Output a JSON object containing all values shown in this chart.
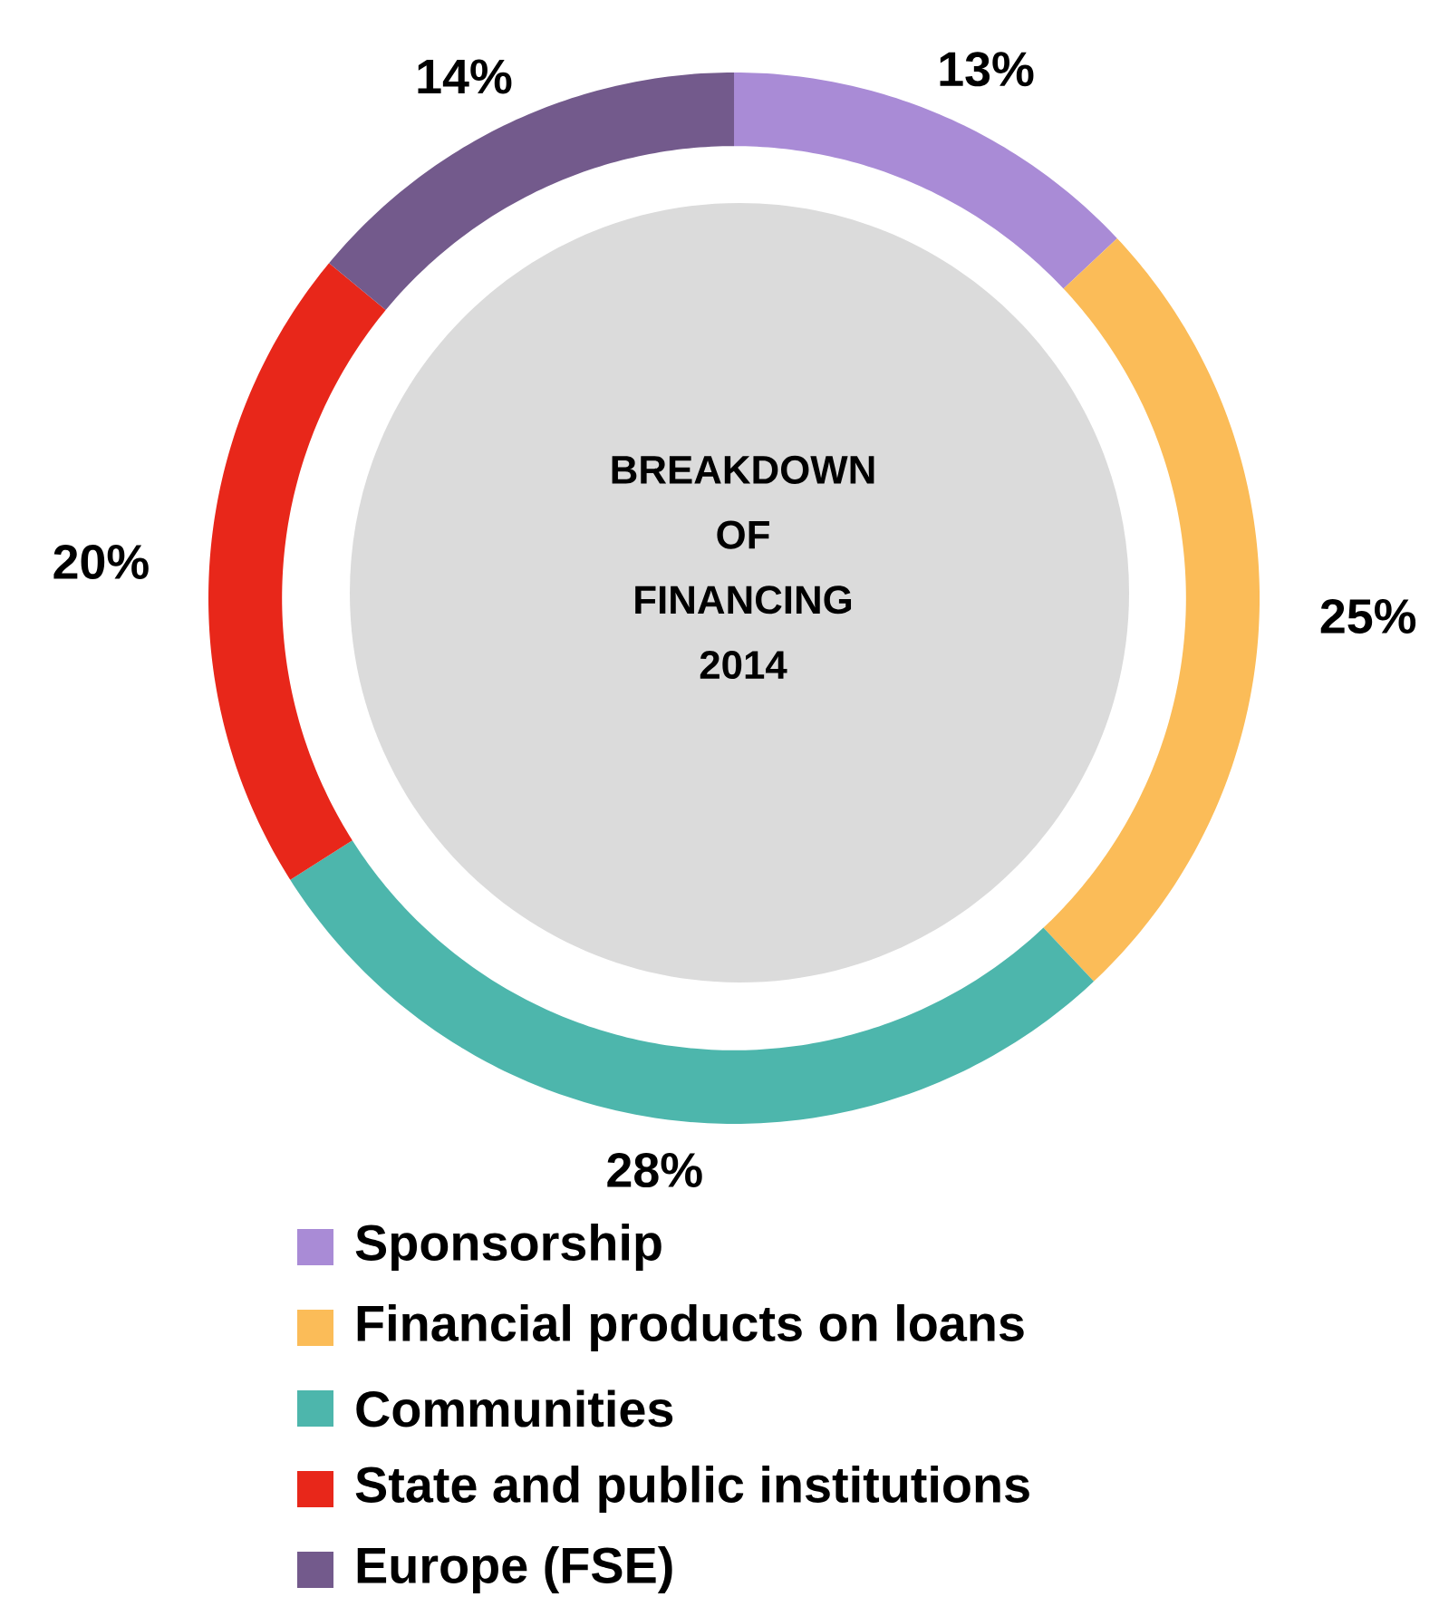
{
  "chart_data": {
    "type": "donut",
    "title": "BREAKDOWN OF FINANCING 2014",
    "categories": [
      "Sponsorship",
      "Financial products on loans",
      "Communities",
      "State and public institutions",
      "Europe (FSE)"
    ],
    "values": [
      13,
      25,
      28,
      20,
      14
    ],
    "value_labels": [
      "13%",
      "25%",
      "28%",
      "20%",
      "14%"
    ],
    "colors": [
      "#a98bd6",
      "#fbbc58",
      "#4db6ac",
      "#e8271a",
      "#735a8c"
    ],
    "legend": "bottom"
  }
}
